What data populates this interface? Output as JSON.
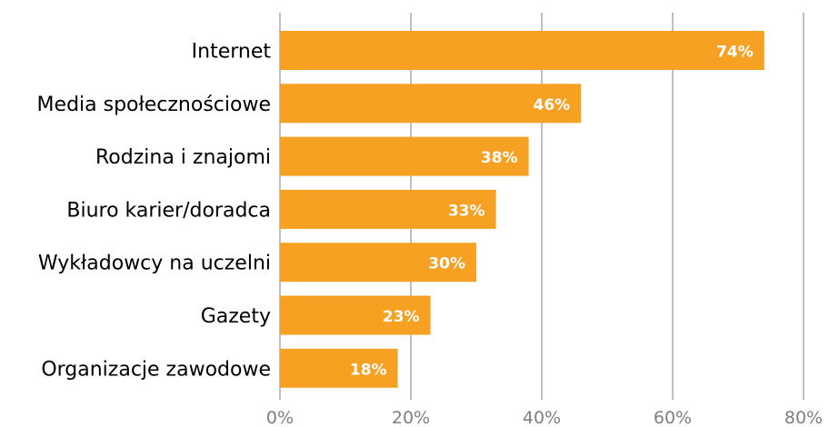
{
  "chart_data": {
    "type": "bar",
    "orientation": "horizontal",
    "categories": [
      "Internet",
      "Media społecznościowe",
      "Rodzina i znajomi",
      "Biuro karier/doradca",
      "Wykładowcy na uczelni",
      "Gazety",
      "Organizacje zawodowe"
    ],
    "values": [
      74,
      46,
      38,
      33,
      30,
      23,
      18
    ],
    "data_labels": [
      "74%",
      "46%",
      "38%",
      "33%",
      "30%",
      "23%",
      "18%"
    ],
    "xticks": [
      0,
      20,
      40,
      60,
      80
    ],
    "xtick_labels": [
      "0%",
      "20%",
      "40%",
      "60%",
      "80%"
    ],
    "xlim": [
      0,
      80
    ],
    "unit": "%",
    "grid": "vertical",
    "legend": "none",
    "title": "",
    "xlabel": "",
    "ylabel": ""
  },
  "colors": {
    "bar": "#F7A123",
    "grid": "#BFBFBF",
    "tick_text": "#7F7F7F",
    "category_text": "#000000",
    "data_label_text": "#FFFFFF"
  }
}
